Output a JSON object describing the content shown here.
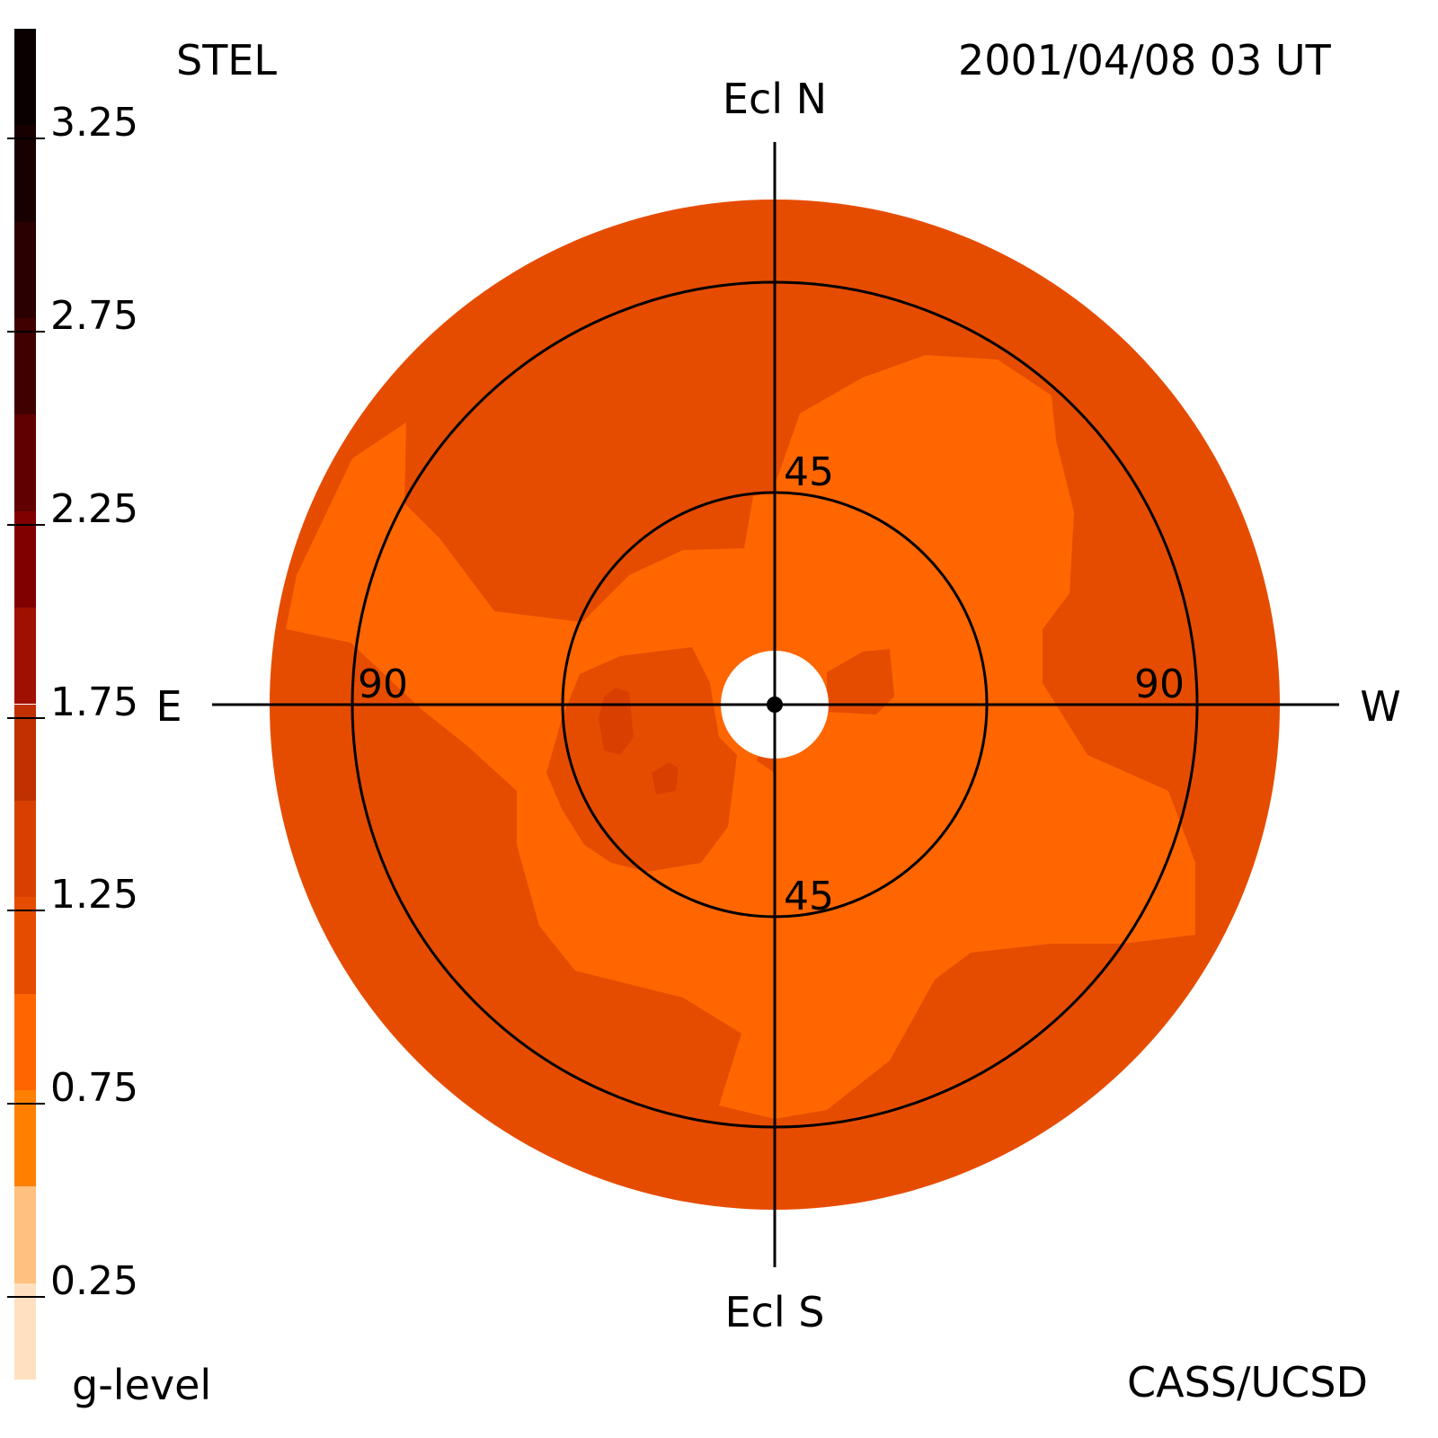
{
  "header": {
    "instrument": "STEL",
    "datetime": "2001/04/08 03 UT"
  },
  "footer": {
    "legend_title": "g-level",
    "credit": "CASS/UCSD"
  },
  "directions": {
    "north": "Ecl N",
    "south": "Ecl S",
    "east": "E",
    "west": "W"
  },
  "ring_labels": {
    "inner_top": "45",
    "inner_bottom": "45",
    "outer_east": "90",
    "outer_west": "90"
  },
  "colorbar": {
    "title": "g-level",
    "min": 0,
    "max": 3.5,
    "step": 0.25,
    "bands": [
      {
        "from": 0.0,
        "to": 0.25,
        "color": "#ffe0c0"
      },
      {
        "from": 0.25,
        "to": 0.5,
        "color": "#ffc080"
      },
      {
        "from": 0.5,
        "to": 0.75,
        "color": "#ff8000"
      },
      {
        "from": 0.75,
        "to": 1.0,
        "color": "#ff6600"
      },
      {
        "from": 1.0,
        "to": 1.25,
        "color": "#e64c00"
      },
      {
        "from": 1.25,
        "to": 1.5,
        "color": "#d94000"
      },
      {
        "from": 1.5,
        "to": 1.75,
        "color": "#c03000"
      },
      {
        "from": 1.75,
        "to": 2.0,
        "color": "#a01000"
      },
      {
        "from": 2.0,
        "to": 2.25,
        "color": "#800000"
      },
      {
        "from": 2.25,
        "to": 2.5,
        "color": "#600000"
      },
      {
        "from": 2.5,
        "to": 2.75,
        "color": "#400000"
      },
      {
        "from": 2.75,
        "to": 3.0,
        "color": "#2a0000"
      },
      {
        "from": 3.0,
        "to": 3.25,
        "color": "#180000"
      },
      {
        "from": 3.25,
        "to": 3.5,
        "color": "#0a0000"
      }
    ],
    "tick_labels": [
      "0.25",
      "0.75",
      "1.25",
      "1.75",
      "2.25",
      "2.75",
      "3.25"
    ]
  },
  "map_colors": {
    "background_field": "#e64c00",
    "enhanced_field": "#ff6600",
    "dense_spot": "#d94000",
    "occulter": "#ffffff",
    "grid_lines": "#000000"
  }
}
